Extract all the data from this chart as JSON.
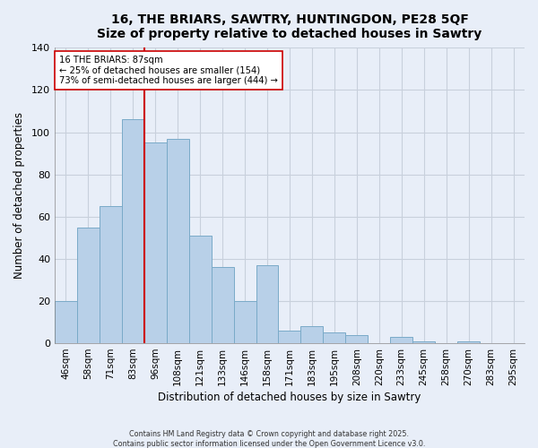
{
  "title": "16, THE BRIARS, SAWTRY, HUNTINGDON, PE28 5QF",
  "subtitle": "Size of property relative to detached houses in Sawtry",
  "xlabel": "Distribution of detached houses by size in Sawtry",
  "ylabel": "Number of detached properties",
  "categories": [
    "46sqm",
    "58sqm",
    "71sqm",
    "83sqm",
    "96sqm",
    "108sqm",
    "121sqm",
    "133sqm",
    "146sqm",
    "158sqm",
    "171sqm",
    "183sqm",
    "195sqm",
    "208sqm",
    "220sqm",
    "233sqm",
    "245sqm",
    "258sqm",
    "270sqm",
    "283sqm",
    "295sqm"
  ],
  "values": [
    20,
    55,
    65,
    106,
    95,
    97,
    51,
    36,
    20,
    37,
    6,
    8,
    5,
    4,
    0,
    3,
    1,
    0,
    1,
    0,
    0
  ],
  "bar_color": "#b8d0e8",
  "bar_edge_color": "#7aaac8",
  "ylim": [
    0,
    140
  ],
  "yticks": [
    0,
    20,
    40,
    60,
    80,
    100,
    120,
    140
  ],
  "reference_line_color": "#cc0000",
  "annotation_title": "16 THE BRIARS: 87sqm",
  "annotation_line1": "← 25% of detached houses are smaller (154)",
  "annotation_line2": "73% of semi-detached houses are larger (444) →",
  "annotation_box_color": "#ffffff",
  "annotation_box_edge_color": "#cc0000",
  "footer1": "Contains HM Land Registry data © Crown copyright and database right 2025.",
  "footer2": "Contains public sector information licensed under the Open Government Licence v3.0.",
  "background_color": "#e8eef8",
  "plot_background_color": "#e8eef8",
  "grid_color": "#c8d0dc"
}
